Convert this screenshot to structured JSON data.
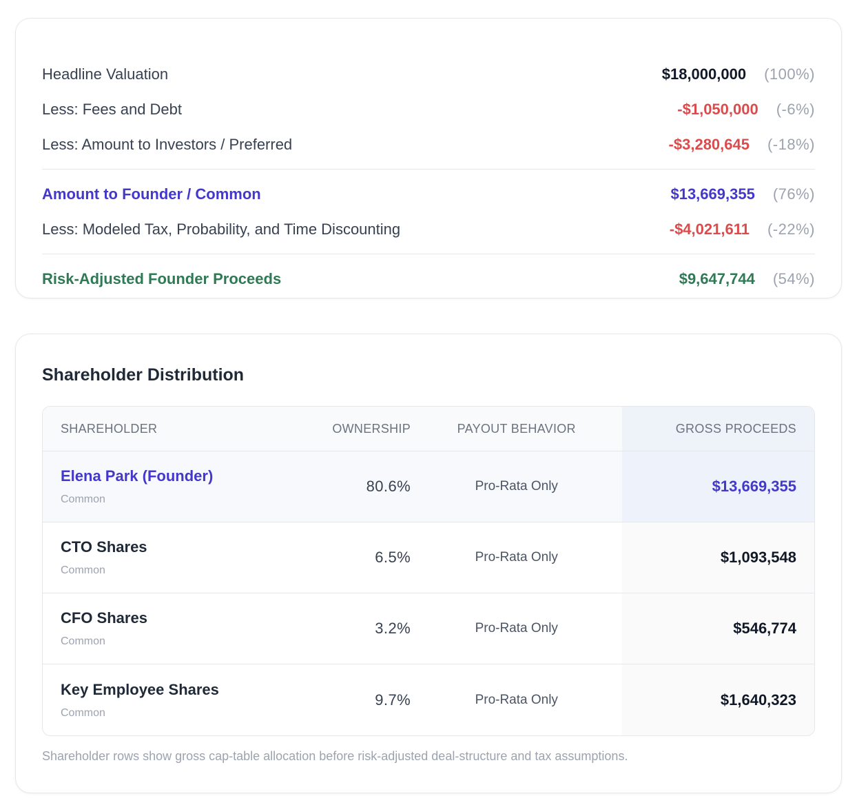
{
  "summary": {
    "rows": [
      {
        "label": "Headline Valuation",
        "amount": "$18,000,000",
        "pct": "(100%)"
      },
      {
        "label": "Less: Fees and Debt",
        "amount": "-$1,050,000",
        "pct": "(-6%)"
      },
      {
        "label": "Less: Amount to Investors / Preferred",
        "amount": "-$3,280,645",
        "pct": "(-18%)"
      },
      {
        "label": "Amount to Founder / Common",
        "amount": "$13,669,355",
        "pct": "(76%)"
      },
      {
        "label": "Less: Modeled Tax, Probability, and Time Discounting",
        "amount": "-$4,021,611",
        "pct": "(-22%)"
      },
      {
        "label": "Risk-Adjusted Founder Proceeds",
        "amount": "$9,647,744",
        "pct": "(54%)"
      }
    ]
  },
  "distribution": {
    "title": "Shareholder Distribution",
    "columns": {
      "shareholder": "SHAREHOLDER",
      "ownership": "OWNERSHIP",
      "payout": "PAYOUT BEHAVIOR",
      "gross": "GROSS PROCEEDS"
    },
    "rows": [
      {
        "name": "Elena Park (Founder)",
        "class": "Common",
        "ownership": "80.6%",
        "payout": "Pro-Rata Only",
        "gross": "$13,669,355"
      },
      {
        "name": "CTO Shares",
        "class": "Common",
        "ownership": "6.5%",
        "payout": "Pro-Rata Only",
        "gross": "$1,093,548"
      },
      {
        "name": "CFO Shares",
        "class": "Common",
        "ownership": "3.2%",
        "payout": "Pro-Rata Only",
        "gross": "$546,774"
      },
      {
        "name": "Key Employee Shares",
        "class": "Common",
        "ownership": "9.7%",
        "payout": "Pro-Rata Only",
        "gross": "$1,640,323"
      }
    ],
    "footnote": "Shareholder rows show gross cap-table allocation before risk-adjusted deal-structure and tax assumptions."
  },
  "colors": {
    "negative": "#dc4b4b",
    "founder_accent": "#4338ca",
    "proceeds_green": "#2f7a55",
    "muted": "#9ca3af"
  }
}
